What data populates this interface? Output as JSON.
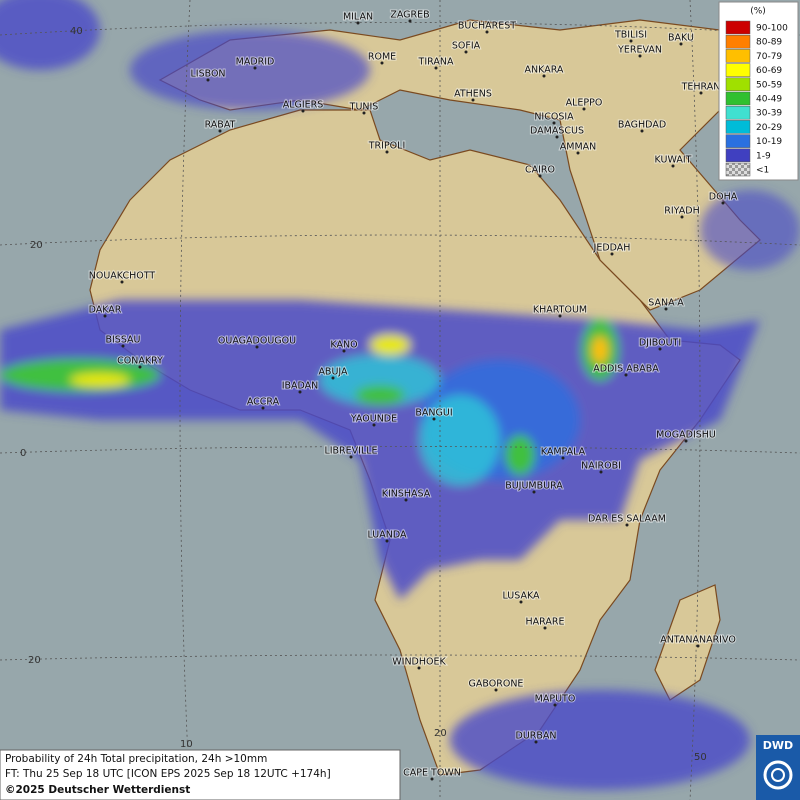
{
  "map": {
    "grid_labels": [
      "40",
      "20",
      "0",
      "20",
      "10",
      "20",
      "50"
    ],
    "legend": {
      "unit": "(%)",
      "items": [
        {
          "label": "90-100",
          "color": "#cc0000"
        },
        {
          "label": "80-89",
          "color": "#ff7f00"
        },
        {
          "label": "70-79",
          "color": "#ffbf00"
        },
        {
          "label": "60-69",
          "color": "#ffff00"
        },
        {
          "label": "50-59",
          "color": "#a0e000"
        },
        {
          "label": "40-49",
          "color": "#30c030"
        },
        {
          "label": "30-39",
          "color": "#40e0d0"
        },
        {
          "label": "20-29",
          "color": "#00bcd8"
        },
        {
          "label": "10-19",
          "color": "#2a70e0"
        },
        {
          "label": "1-9",
          "color": "#4040c0"
        },
        {
          "label": "<1",
          "color": "checker"
        }
      ]
    },
    "cities": [
      "MILAN",
      "ZAGREB",
      "BUCHAREST",
      "TBILISI",
      "BAKU",
      "SOFIA",
      "YEREVAN",
      "LISBON",
      "MADRID",
      "ROME",
      "TIRANA",
      "ANKARA",
      "TEHRAN",
      "ATHENS",
      "ALGIERS",
      "TUNIS",
      "ALEPPO",
      "RABAT",
      "NICOSIA",
      "BAGHDAD",
      "DAMASCUS",
      "TRIPOLI",
      "AMMAN",
      "KUWAIT",
      "CAIRO",
      "DOHA",
      "RIYADH",
      "JEDDAH",
      "NOUAKCHOTT",
      "KHARTOUM",
      "DAKAR",
      "SANA'A",
      "BISSAU",
      "OUAGADOUGOU",
      "KANO",
      "DJIBOUTI",
      "CONAKRY",
      "ABUJA",
      "ADDIS ABABA",
      "IBADAN",
      "ACCRA",
      "BANGUI",
      "YAOUNDE",
      "MOGADISHU",
      "LIBREVILLE",
      "KAMPALA",
      "NAIROBI",
      "BUJUMBURA",
      "KINSHASA",
      "DAR ES SALAAM",
      "LUANDA",
      "LUSAKA",
      "HARARE",
      "ANTANANARIVO",
      "WINDHOEK",
      "GABORONE",
      "MAPUTO",
      "DURBAN",
      "CAPE TOWN"
    ],
    "caption": {
      "line1": "Probability of 24h Total precipitation, 24h >10mm",
      "line2": "FT: Thu 25 Sep 18 UTC [ICON EPS 2025 Sep 18 12UTC +174h]",
      "line3": "©2025 Deutscher Wetterdienst"
    },
    "logo": "DWD"
  }
}
